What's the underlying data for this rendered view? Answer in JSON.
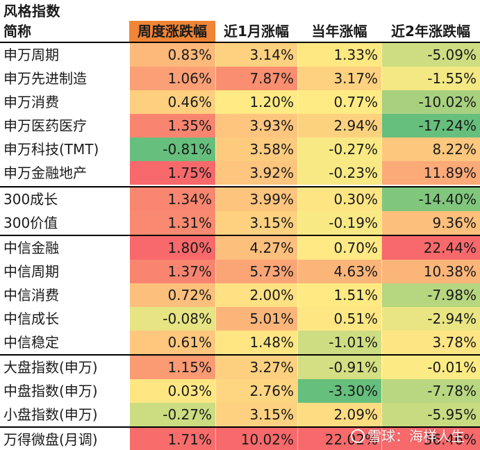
{
  "title": "风格指数",
  "columns": [
    "简称",
    "周度涨跌幅",
    "近1月涨幅",
    "当年涨幅",
    "近2年涨跌幅"
  ],
  "header_accent": "#ef8535",
  "rows": [
    {
      "name": "申万周期",
      "values": [
        "0.83%",
        "3.14%",
        "1.33%",
        "-5.09%"
      ],
      "colors": [
        "#fcb97a",
        "#fdd17f",
        "#fee882",
        "#cfdd82"
      ]
    },
    {
      "name": "申万先进制造",
      "values": [
        "1.06%",
        "7.87%",
        "3.17%",
        "-1.55%"
      ],
      "colors": [
        "#fba076",
        "#f98f70",
        "#fdd17f",
        "#f3e884"
      ]
    },
    {
      "name": "申万消费",
      "values": [
        "0.46%",
        "1.20%",
        "0.77%",
        "-10.02%"
      ],
      "colors": [
        "#fdcf7e",
        "#ffea84",
        "#ffeb84",
        "#a8d17f"
      ]
    },
    {
      "name": "申万医药医疗",
      "values": [
        "1.35%",
        "3.93%",
        "2.94%",
        "-17.24%"
      ],
      "colors": [
        "#f98570",
        "#fdc57d",
        "#fdd27f",
        "#66bf7c"
      ]
    },
    {
      "name": "申万科技(TMT)",
      "values": [
        "-0.81%",
        "3.58%",
        "-0.27%",
        "8.22%"
      ],
      "colors": [
        "#66bf7c",
        "#fdcb7e",
        "#f8e984",
        "#fdc77d"
      ]
    },
    {
      "name": "申万金融地产",
      "values": [
        "1.75%",
        "3.92%",
        "-0.23%",
        "11.89%"
      ],
      "colors": [
        "#f8696b",
        "#fdc57d",
        "#f9e984",
        "#fcaa78"
      ]
    },
    {
      "name": "300成长",
      "values": [
        "1.34%",
        "3.99%",
        "0.30%",
        "-14.40%"
      ],
      "colors": [
        "#f98670",
        "#fdc47d",
        "#fee583",
        "#80c77d"
      ]
    },
    {
      "name": "300价值",
      "values": [
        "1.31%",
        "3.15%",
        "-0.19%",
        "9.36%"
      ],
      "colors": [
        "#f98970",
        "#fdd17f",
        "#f9e984",
        "#fdbf7c"
      ]
    },
    {
      "name": "中信金融",
      "values": [
        "1.80%",
        "4.27%",
        "0.70%",
        "22.44%"
      ],
      "colors": [
        "#f8696b",
        "#fdbf7c",
        "#ffe984",
        "#f8696b"
      ]
    },
    {
      "name": "中信周期",
      "values": [
        "1.37%",
        "5.73%",
        "4.63%",
        "10.38%"
      ],
      "colors": [
        "#f98570",
        "#fba576",
        "#fcb579",
        "#fcb579"
      ]
    },
    {
      "name": "中信消费",
      "values": [
        "0.72%",
        "2.00%",
        "1.51%",
        "-7.98%"
      ],
      "colors": [
        "#fdc07c",
        "#fee182",
        "#fee983",
        "#b6d680"
      ]
    },
    {
      "name": "中信成长",
      "values": [
        "-0.08%",
        "5.01%",
        "0.51%",
        "-2.94%"
      ],
      "colors": [
        "#e7e483",
        "#fcb579",
        "#fee783",
        "#e9e583"
      ]
    },
    {
      "name": "中信稳定",
      "values": [
        "0.61%",
        "1.48%",
        "-1.01%",
        "3.78%"
      ],
      "colors": [
        "#fec77d",
        "#ffe683",
        "#cfdd82",
        "#fee583"
      ]
    },
    {
      "name": "大盘指数(申万)",
      "values": [
        "1.15%",
        "3.27%",
        "-0.91%",
        "-0.01%"
      ],
      "colors": [
        "#fa9b74",
        "#fdd07f",
        "#d4de82",
        "#fcea84"
      ]
    },
    {
      "name": "中盘指数(申万)",
      "values": [
        "0.03%",
        "2.76%",
        "-3.30%",
        "-7.78%"
      ],
      "colors": [
        "#fee783",
        "#fed580",
        "#66bf7c",
        "#b8d780"
      ]
    },
    {
      "name": "小盘指数(申万)",
      "values": [
        "-0.27%",
        "3.15%",
        "2.09%",
        "-5.95%"
      ],
      "colors": [
        "#cbdc81",
        "#fdd17f",
        "#fedc81",
        "#c8db81"
      ]
    },
    {
      "name": "万得微盘(月调)",
      "values": [
        "1.71%",
        "10.02%",
        "22.02%",
        "36.46%"
      ],
      "colors": [
        "#f86d6b",
        "#f8696b",
        "#f8696b",
        "#f8696b"
      ]
    }
  ],
  "watermark": {
    "text": "雪球：海样人生",
    "icon": "snowball-logo-icon"
  }
}
